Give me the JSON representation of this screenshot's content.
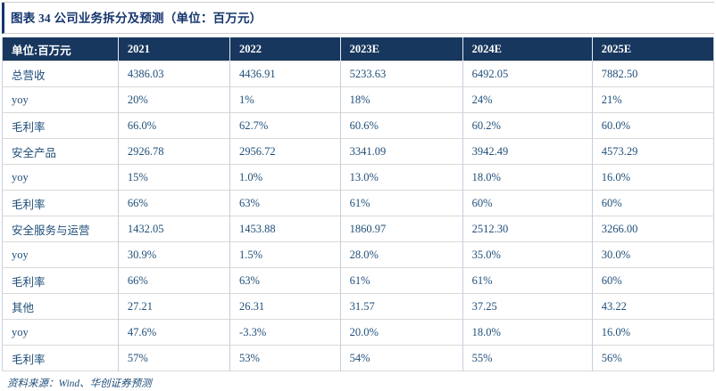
{
  "title": "图表 34 公司业务拆分及预测（单位：百万元）",
  "source_note": "资料来源：Wind、华创证券预测",
  "colors": {
    "title-text": "#16366E",
    "header-bg": "#17375E",
    "header-text": "#FFFFFF",
    "cell-text": "#1F4E79",
    "rule-gray": "#CFCFCF",
    "border-h": "#D9D9D9",
    "border-v": "#C6CFDE",
    "header-sep": "#E9EDF2"
  },
  "chart_data": {
    "type": "table",
    "title": "图表 34 公司业务拆分及预测（单位：百万元）",
    "headers": [
      "单位:百万元",
      "2021",
      "2022",
      "2023E",
      "2024E",
      "2025E"
    ],
    "rows": [
      {
        "label": "总营收",
        "values": [
          "4386.03",
          "4436.91",
          "5233.63",
          "6492.05",
          "7882.50"
        ]
      },
      {
        "label": "yoy",
        "values": [
          "20%",
          "1%",
          "18%",
          "24%",
          "21%"
        ]
      },
      {
        "label": "毛利率",
        "values": [
          "66.0%",
          "62.7%",
          "60.6%",
          "60.2%",
          "60.0%"
        ]
      },
      {
        "label": "安全产品",
        "values": [
          "2926.78",
          "2956.72",
          "3341.09",
          "3942.49",
          "4573.29"
        ]
      },
      {
        "label": "yoy",
        "values": [
          "15%",
          "1.0%",
          "13.0%",
          "18.0%",
          "16.0%"
        ]
      },
      {
        "label": "毛利率",
        "values": [
          "66%",
          "63%",
          "61%",
          "60%",
          "60%"
        ]
      },
      {
        "label": "安全服务与运营",
        "values": [
          "1432.05",
          "1453.88",
          "1860.97",
          "2512.30",
          "3266.00"
        ]
      },
      {
        "label": "yoy",
        "values": [
          "30.9%",
          "1.5%",
          "28.0%",
          "35.0%",
          "30.0%"
        ]
      },
      {
        "label": "毛利率",
        "values": [
          "66%",
          "63%",
          "61%",
          "61%",
          "60%"
        ]
      },
      {
        "label": "其他",
        "values": [
          "27.21",
          "26.31",
          "31.57",
          "37.25",
          "43.22"
        ]
      },
      {
        "label": "yoy",
        "values": [
          "47.6%",
          "-3.3%",
          "20.0%",
          "18.0%",
          "16.0%"
        ]
      },
      {
        "label": "毛利率",
        "values": [
          "57%",
          "53%",
          "54%",
          "55%",
          "56%"
        ]
      }
    ]
  }
}
